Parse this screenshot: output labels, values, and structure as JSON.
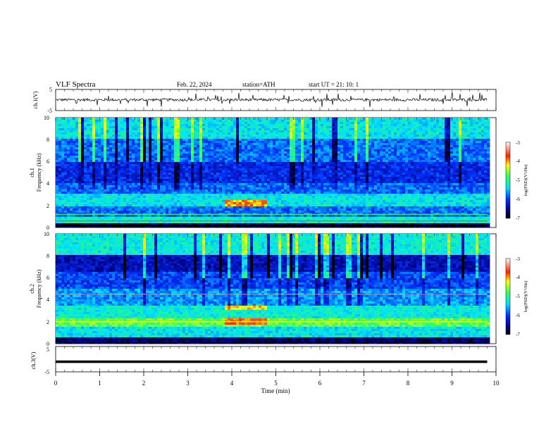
{
  "header": {
    "title": "VLF Spectra",
    "date": "Feb. 22, 2024",
    "station": "station=ATH",
    "start": "start UT = 21: 10: 1"
  },
  "chart_data": [
    {
      "type": "line",
      "ylabel": "ch.1(V)",
      "ylim": [
        -5,
        5
      ],
      "yticks": [
        "5",
        "-5"
      ],
      "description_level": "noisy waveform near 0 V with occasional spikes"
    },
    {
      "type": "heatmap",
      "ylabel_line1": "ch.1",
      "ylabel_line2": "Frequency (kHz)",
      "ylim": [
        0,
        10
      ],
      "yticks": [
        "0",
        "2",
        "4",
        "6",
        "8",
        "10"
      ],
      "colorbar": {
        "label": "log(PSD)(V²/Hz)",
        "ticks": [
          "-3",
          "-4",
          "-5",
          "-6",
          "-7"
        ],
        "range": [
          -7,
          -3
        ]
      }
    },
    {
      "type": "heatmap",
      "ylabel_line1": "ch.2",
      "ylabel_line2": "Frequency (kHz)",
      "ylim": [
        0,
        10
      ],
      "yticks": [
        "0",
        "2",
        "4",
        "6",
        "8",
        "10"
      ],
      "colorbar": {
        "label": "log(PSD)(V²/Hz)",
        "ticks": [
          "-3",
          "-4",
          "-5",
          "-6",
          "-7"
        ],
        "range": [
          -7,
          -3
        ]
      }
    },
    {
      "type": "line",
      "ylabel": "ch.3(V)",
      "ylim": [
        -5,
        5
      ],
      "yticks": [
        "5",
        "-5"
      ],
      "level_v": -1
    }
  ],
  "xaxis": {
    "label": "Time (min)",
    "range": [
      0,
      10
    ],
    "ticks": [
      "0",
      "1",
      "2",
      "3",
      "4",
      "5",
      "6",
      "7",
      "8",
      "9",
      "10"
    ],
    "data_end": 9.8
  }
}
